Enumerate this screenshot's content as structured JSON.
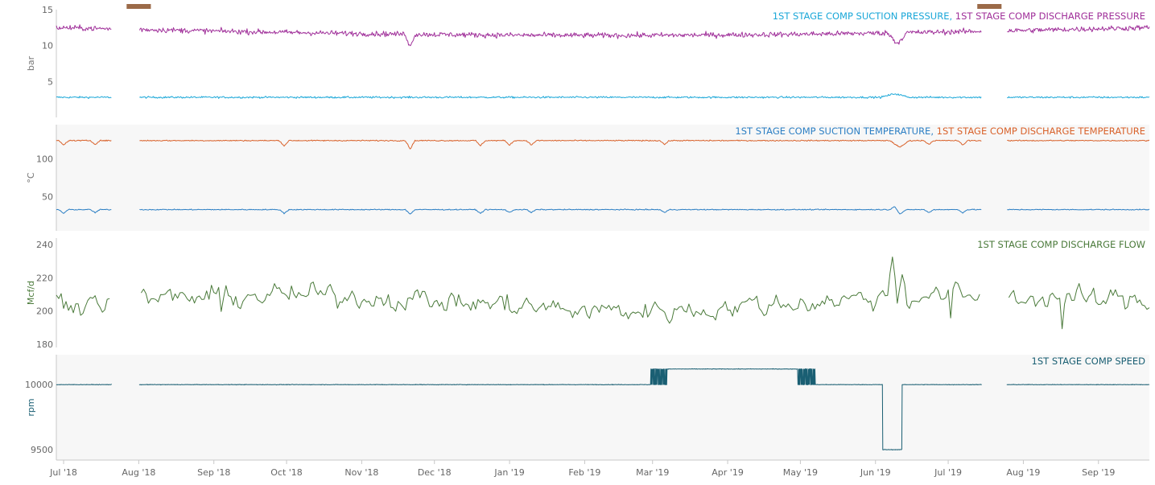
{
  "chart_data": {
    "type": "line",
    "x_axis": {
      "ticks": [
        "Jul '18",
        "Aug '18",
        "Sep '18",
        "Oct '18",
        "Nov '18",
        "Dec '18",
        "Jan '19",
        "Feb '19",
        "Mar '19",
        "Apr '19",
        "May '19",
        "Jun '19",
        "Jul '19",
        "Aug '19",
        "Sep '19"
      ],
      "range": [
        "2018-06-28",
        "2019-09-22"
      ]
    },
    "data_gaps": [
      [
        "2018-07-21",
        "2018-08-01"
      ],
      [
        "2019-07-15",
        "2019-07-25"
      ]
    ],
    "gap_markers": [
      [
        "2018-07-27",
        "2018-08-06"
      ],
      [
        "2019-07-13",
        "2019-07-23"
      ]
    ],
    "gap_marker_color": "#9b6a48",
    "panels": [
      {
        "id": "pressure",
        "ylabel": "bar",
        "ylim": [
          0,
          15
        ],
        "yticks": [
          5,
          10,
          15
        ],
        "background": "#ffffff",
        "series": [
          {
            "name": "1ST STAGE COMP SUCTION PRESSURE",
            "color": "#1aa7d8",
            "base": 2.8,
            "trend": 0,
            "noise": 0.12,
            "dips": [
              [
                "2019-06-09",
                0.5,
                6
              ]
            ]
          },
          {
            "name": "1ST STAGE COMP DISCHARGE PRESSURE",
            "color": "#a0309a",
            "base": 12.5,
            "trend": -1.2,
            "noise": 0.35,
            "dips": [
              [
                "2018-11-21",
                -1.8,
                2
              ],
              [
                "2019-06-10",
                -1.5,
                4
              ]
            ]
          }
        ]
      },
      {
        "id": "temperature",
        "ylabel": "°C",
        "ylim": [
          5,
          145
        ],
        "yticks": [
          50,
          100
        ],
        "background": "#f7f7f7",
        "series": [
          {
            "name": "1ST STAGE COMP SUCTION TEMPERATURE",
            "color": "#2c7fc4",
            "base": 33,
            "trend": 0,
            "noise": 0.6,
            "dips": [
              [
                "2018-07-01",
                -5,
                2
              ],
              [
                "2018-07-14",
                -4,
                2
              ],
              [
                "2018-09-30",
                -5,
                2
              ],
              [
                "2018-11-21",
                -6,
                2
              ],
              [
                "2018-12-20",
                -5,
                2
              ],
              [
                "2019-01-01",
                -4,
                2
              ],
              [
                "2019-01-10",
                -4,
                2
              ],
              [
                "2019-03-06",
                -4,
                2
              ],
              [
                "2019-06-09",
                6,
                2
              ],
              [
                "2019-06-11",
                -6,
                3
              ],
              [
                "2019-06-23",
                -4,
                2
              ],
              [
                "2019-07-07",
                -4,
                2
              ]
            ]
          },
          {
            "name": "1ST STAGE COMP DISCHARGE TEMPERATURE",
            "color": "#d9622b",
            "base": 124,
            "trend": 0,
            "noise": 0.7,
            "dips": [
              [
                "2018-07-01",
                -6,
                2
              ],
              [
                "2018-07-14",
                -5,
                2
              ],
              [
                "2018-09-30",
                -7,
                2
              ],
              [
                "2018-11-21",
                -11,
                2
              ],
              [
                "2018-12-20",
                -7,
                2
              ],
              [
                "2019-01-01",
                -6,
                2
              ],
              [
                "2019-01-10",
                -6,
                2
              ],
              [
                "2019-03-06",
                -5,
                2
              ],
              [
                "2019-06-11",
                -9,
                4
              ],
              [
                "2019-06-23",
                -5,
                2
              ],
              [
                "2019-07-07",
                -6,
                2
              ]
            ]
          }
        ]
      },
      {
        "id": "flow",
        "ylabel": "Mcf/d",
        "ylim": [
          178,
          244
        ],
        "yticks": [
          180,
          200,
          220,
          240
        ],
        "background": "#ffffff",
        "series": [
          {
            "name": "1ST STAGE COMP DISCHARGE FLOW",
            "color": "#4a7a3a",
            "base": 206,
            "trend": 0,
            "noise": 5.5,
            "dips": [
              [
                "2018-12-31",
                14,
                1
              ],
              [
                "2019-06-08",
                28,
                2
              ],
              [
                "2019-06-12",
                14,
                2
              ],
              [
                "2018-09-04",
                -14,
                1
              ],
              [
                "2019-07-02",
                -13,
                1
              ],
              [
                "2019-08-17",
                -14,
                1
              ]
            ]
          }
        ]
      },
      {
        "id": "speed",
        "ylabel": "rpm",
        "ylim": [
          9420,
          10230
        ],
        "yticks": [
          9500,
          10000
        ],
        "background": "#f7f7f7",
        "series": [
          {
            "name": "1ST STAGE COMP SPEED",
            "color": "#1a5f73",
            "mode": "step",
            "levels": [
              [
                "2018-06-28",
                10000
              ],
              [
                "2019-03-01",
                10120
              ],
              [
                "2019-05-01",
                10000
              ],
              [
                "2019-06-04",
                9500
              ],
              [
                "2019-06-12",
                10000
              ]
            ],
            "toggles": [
              [
                "2019-02-28",
                "2019-03-07"
              ],
              [
                "2019-04-30",
                "2019-05-07"
              ]
            ]
          }
        ]
      }
    ]
  }
}
